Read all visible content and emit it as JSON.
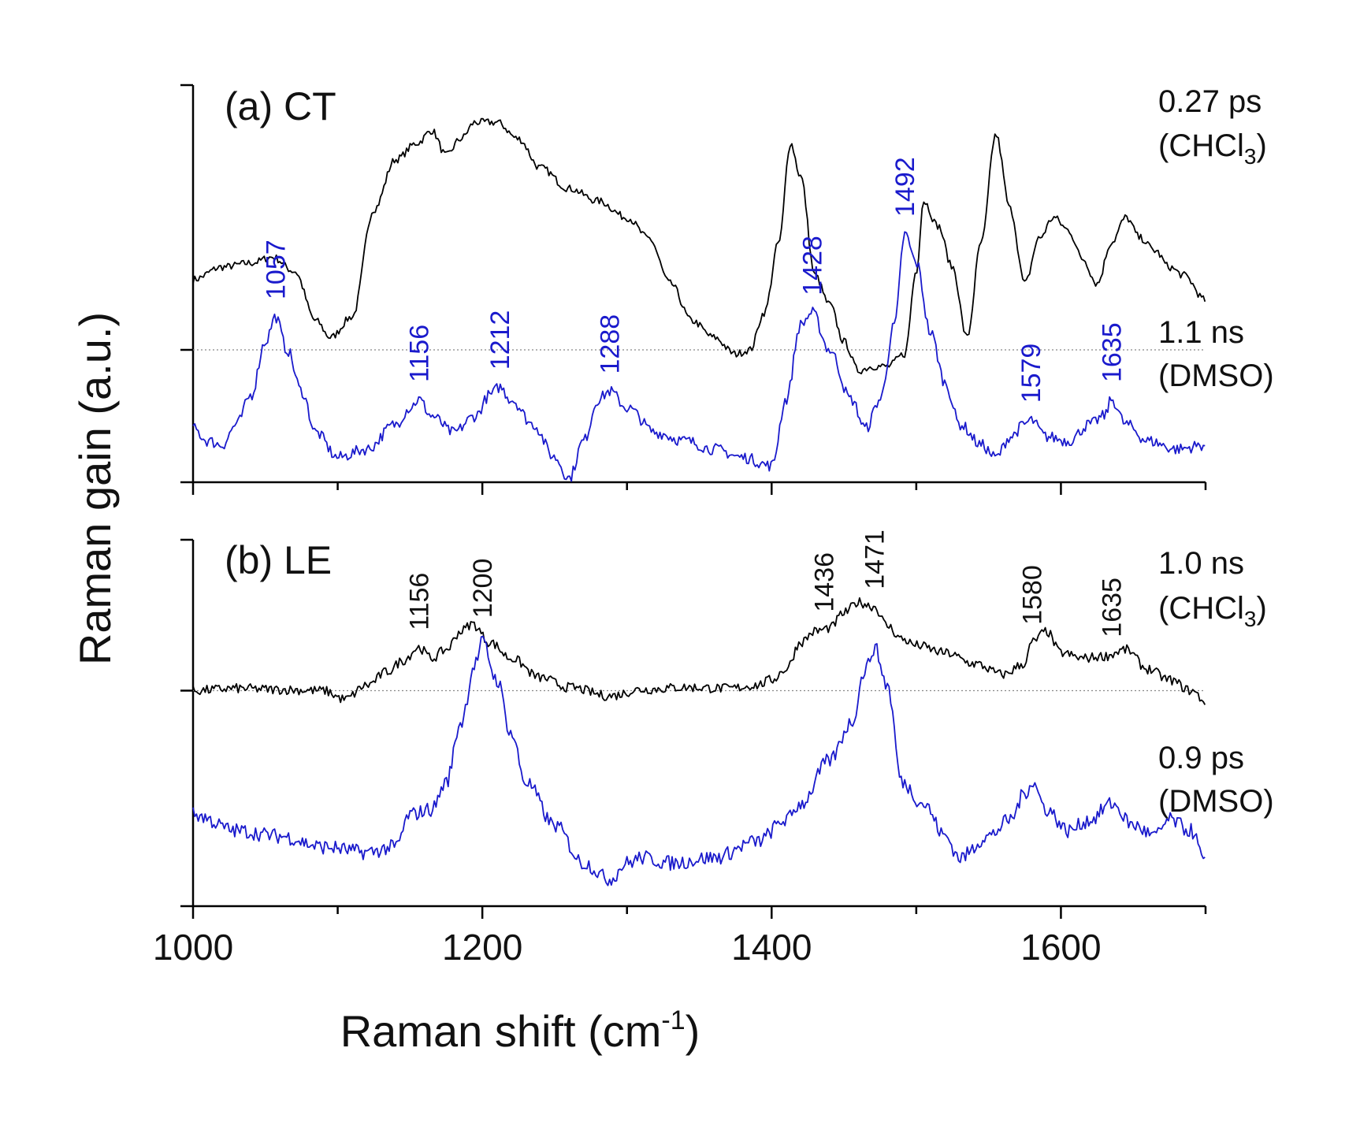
{
  "chart_data": {
    "type": "line",
    "xlabel": "Raman shift (cm",
    "xlabel_sup": "-1",
    "xlabel_end": ")",
    "ylabel": "Raman gain (a.u.)",
    "xlim": [
      1000,
      1700
    ],
    "x_ticks": [
      1000,
      1200,
      1400,
      1600
    ],
    "panels": [
      {
        "label": "(a) CT",
        "ylim": [
          -1.6,
          3.2
        ],
        "y_ticks": [
          -1.6,
          0,
          3.2
        ],
        "baseline": 0,
        "series": [
          {
            "name": "CT CHCl3",
            "time": "0.27 ps",
            "solvent_prefix": "(CHCl",
            "solvent_sub": "3",
            "solvent_suffix": ")",
            "color": "#000000",
            "x": [
              1000,
              1020,
              1040,
              1055,
              1070,
              1085,
              1095,
              1110,
              1125,
              1140,
              1155,
              1165,
              1175,
              1185,
              1195,
              1210,
              1225,
              1240,
              1260,
              1280,
              1300,
              1315,
              1330,
              1345,
              1360,
              1375,
              1385,
              1395,
              1405,
              1413,
              1420,
              1430,
              1440,
              1450,
              1460,
              1470,
              1480,
              1492,
              1500,
              1505,
              1515,
              1525,
              1535,
              1545,
              1555,
              1565,
              1575,
              1585,
              1595,
              1605,
              1615,
              1625,
              1635,
              1645,
              1655,
              1665,
              1675,
              1685,
              1700
            ],
            "y": [
              0.85,
              1.0,
              1.05,
              1.12,
              0.95,
              0.35,
              0.15,
              0.4,
              1.7,
              2.3,
              2.5,
              2.65,
              2.35,
              2.55,
              2.75,
              2.75,
              2.55,
              2.2,
              1.95,
              1.8,
              1.6,
              1.35,
              0.8,
              0.35,
              0.15,
              -0.05,
              0.0,
              0.45,
              1.3,
              2.5,
              2.1,
              0.9,
              0.55,
              0.1,
              -0.25,
              -0.2,
              -0.2,
              -0.05,
              0.95,
              1.8,
              1.5,
              1.0,
              0.15,
              1.3,
              2.6,
              1.7,
              0.8,
              1.35,
              1.6,
              1.45,
              1.1,
              0.8,
              1.3,
              1.6,
              1.35,
              1.2,
              1.0,
              0.9,
              0.6
            ]
          },
          {
            "name": "CT DMSO",
            "time": "1.1 ns",
            "solvent": "(DMSO)",
            "color": "#1a1acc",
            "x": [
              1000,
              1010,
              1020,
              1030,
              1040,
              1050,
              1057,
              1065,
              1075,
              1085,
              1100,
              1120,
              1140,
              1150,
              1156,
              1165,
              1180,
              1195,
              1205,
              1212,
              1220,
              1235,
              1250,
              1260,
              1270,
              1280,
              1288,
              1300,
              1320,
              1340,
              1360,
              1380,
              1400,
              1410,
              1420,
              1428,
              1440,
              1455,
              1465,
              1475,
              1485,
              1492,
              1500,
              1510,
              1520,
              1530,
              1545,
              1555,
              1565,
              1575,
              1579,
              1590,
              1605,
              1620,
              1630,
              1635,
              1645,
              1660,
              1680,
              1700
            ],
            "y": [
              -0.95,
              -1.1,
              -1.15,
              -0.9,
              -0.55,
              0.1,
              0.4,
              0.0,
              -0.5,
              -1.0,
              -1.3,
              -1.2,
              -0.9,
              -0.7,
              -0.6,
              -0.8,
              -1.0,
              -0.8,
              -0.55,
              -0.45,
              -0.6,
              -0.9,
              -1.3,
              -1.55,
              -1.1,
              -0.6,
              -0.5,
              -0.7,
              -1.0,
              -1.1,
              -1.2,
              -1.3,
              -1.4,
              -0.6,
              0.3,
              0.45,
              0.0,
              -0.6,
              -0.95,
              -0.6,
              0.3,
              1.4,
              1.05,
              0.2,
              -0.4,
              -0.9,
              -1.15,
              -1.3,
              -1.05,
              -0.9,
              -0.85,
              -1.05,
              -1.1,
              -0.9,
              -0.8,
              -0.6,
              -0.9,
              -1.1,
              -1.2,
              -1.15
            ]
          }
        ],
        "peak_labels": [
          {
            "x": 1057,
            "text": "1057"
          },
          {
            "x": 1156,
            "text": "1156"
          },
          {
            "x": 1212,
            "text": "1212"
          },
          {
            "x": 1288,
            "text": "1288"
          },
          {
            "x": 1428,
            "text": "1428"
          },
          {
            "x": 1492,
            "text": "1492"
          },
          {
            "x": 1579,
            "text": "1579"
          },
          {
            "x": 1635,
            "text": "1635"
          }
        ]
      },
      {
        "label": "(b) LE",
        "ylim": [
          -2.0,
          1.4
        ],
        "y_ticks": [
          -2.0,
          0,
          1.4
        ],
        "baseline": 0,
        "series": [
          {
            "name": "LE CHCl3",
            "time": "1.0 ns",
            "solvent_prefix": "(CHCl",
            "solvent_sub": "3",
            "solvent_suffix": ")",
            "color": "#000000",
            "x": [
              1000,
              1030,
              1060,
              1090,
              1105,
              1120,
              1135,
              1145,
              1156,
              1165,
              1175,
              1185,
              1193,
              1205,
              1220,
              1240,
              1260,
              1288,
              1310,
              1340,
              1370,
              1390,
              1400,
              1410,
              1420,
              1430,
              1440,
              1450,
              1460,
              1471,
              1480,
              1490,
              1500,
              1520,
              1540,
              1560,
              1575,
              1580,
              1590,
              1600,
              1615,
              1630,
              1645,
              1660,
              1675,
              1690,
              1700
            ],
            "y": [
              0.0,
              0.02,
              0.01,
              0.0,
              -0.08,
              0.05,
              0.18,
              0.28,
              0.4,
              0.3,
              0.38,
              0.55,
              0.62,
              0.45,
              0.3,
              0.12,
              0.03,
              -0.05,
              0.01,
              0.03,
              0.02,
              0.05,
              0.1,
              0.2,
              0.45,
              0.55,
              0.58,
              0.72,
              0.82,
              0.78,
              0.6,
              0.48,
              0.42,
              0.35,
              0.25,
              0.15,
              0.25,
              0.45,
              0.55,
              0.35,
              0.3,
              0.32,
              0.38,
              0.2,
              0.1,
              0.0,
              -0.1
            ]
          },
          {
            "name": "LE DMSO",
            "time": "0.9 ps",
            "solvent": "(DMSO)",
            "color": "#1a1acc",
            "x": [
              1000,
              1030,
              1060,
              1090,
              1120,
              1140,
              1150,
              1165,
              1175,
              1185,
              1195,
              1200,
              1210,
              1220,
              1230,
              1250,
              1270,
              1288,
              1300,
              1310,
              1330,
              1360,
              1390,
              1410,
              1420,
              1440,
              1455,
              1465,
              1471,
              1480,
              1490,
              1505,
              1520,
              1530,
              1550,
              1565,
              1575,
              1580,
              1590,
              1605,
              1620,
              1635,
              1650,
              1665,
              1675,
              1690,
              1700
            ],
            "y": [
              -1.15,
              -1.3,
              -1.35,
              -1.45,
              -1.5,
              -1.45,
              -1.15,
              -1.1,
              -0.85,
              -0.3,
              0.25,
              0.45,
              0.1,
              -0.4,
              -0.85,
              -1.25,
              -1.6,
              -1.75,
              -1.6,
              -1.55,
              -1.6,
              -1.55,
              -1.4,
              -1.2,
              -1.05,
              -0.65,
              -0.3,
              0.2,
              0.4,
              0.05,
              -0.85,
              -1.05,
              -1.35,
              -1.55,
              -1.35,
              -1.2,
              -0.95,
              -0.85,
              -1.1,
              -1.3,
              -1.2,
              -1.05,
              -1.25,
              -1.35,
              -1.2,
              -1.3,
              -1.6
            ]
          }
        ],
        "peak_labels": [
          {
            "x": 1156,
            "text": "1156"
          },
          {
            "x": 1200,
            "text": "1200"
          },
          {
            "x": 1436,
            "text": "1436"
          },
          {
            "x": 1471,
            "text": "1471"
          },
          {
            "x": 1580,
            "text": "1580"
          },
          {
            "x": 1635,
            "text": "1635"
          }
        ]
      }
    ]
  }
}
